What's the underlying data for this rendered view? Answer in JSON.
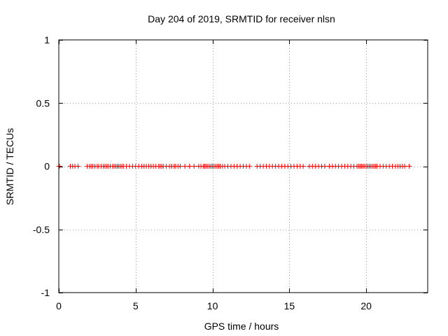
{
  "chart_data": {
    "type": "scatter",
    "title": "Day 204 of 2019, SRMTID for receiver nlsn",
    "xlabel": "GPS time / hours",
    "ylabel": "SRMTID / TECUs",
    "xlim": [
      0,
      24
    ],
    "ylim": [
      -1,
      1
    ],
    "xticks": [
      0,
      5,
      10,
      15,
      20
    ],
    "xtick_labels": [
      "0",
      "5",
      "10",
      "15",
      "20"
    ],
    "yticks": [
      -1,
      -0.5,
      0,
      0.5,
      1
    ],
    "ytick_labels": [
      "-1",
      "-0.5",
      "0",
      "0.5",
      "1"
    ],
    "grid": true,
    "marker": "+",
    "series": [
      {
        "name": "SRMTID",
        "color": "#ff0000",
        "x": [
          0.0,
          0.05,
          0.75,
          0.9,
          1.05,
          1.25,
          1.85,
          2.0,
          2.1,
          2.2,
          2.35,
          2.5,
          2.6,
          2.75,
          2.9,
          3.0,
          3.1,
          3.2,
          3.35,
          3.5,
          3.6,
          3.7,
          3.8,
          3.9,
          4.0,
          4.1,
          4.2,
          4.4,
          4.6,
          4.8,
          5.0,
          5.2,
          5.4,
          5.55,
          5.7,
          5.85,
          6.0,
          6.15,
          6.3,
          6.5,
          6.6,
          6.7,
          6.8,
          7.0,
          7.2,
          7.35,
          7.5,
          7.6,
          7.75,
          7.9,
          8.2,
          8.5,
          8.8,
          9.1,
          9.25,
          9.4,
          9.5,
          9.6,
          9.7,
          9.8,
          9.9,
          10.0,
          10.1,
          10.2,
          10.3,
          10.4,
          10.5,
          10.65,
          10.8,
          11.0,
          11.2,
          11.4,
          11.6,
          11.8,
          12.0,
          12.2,
          12.4,
          12.9,
          13.1,
          13.3,
          13.5,
          13.7,
          13.9,
          14.1,
          14.3,
          14.5,
          14.7,
          14.9,
          15.1,
          15.3,
          15.5,
          15.7,
          15.9,
          16.3,
          16.5,
          16.7,
          16.9,
          17.1,
          17.3,
          17.6,
          17.8,
          18.0,
          18.2,
          18.4,
          18.6,
          18.8,
          19.0,
          19.2,
          19.4,
          19.5,
          19.6,
          19.7,
          19.8,
          19.9,
          20.0,
          20.1,
          20.2,
          20.3,
          20.4,
          20.5,
          20.6,
          20.7,
          20.9,
          21.1,
          21.3,
          21.5,
          21.7,
          21.9,
          22.05,
          22.2,
          22.35,
          22.5,
          22.8
        ],
        "y": [
          0,
          0,
          0,
          0,
          0,
          0,
          0,
          0,
          0,
          0,
          0,
          0,
          0,
          0,
          0,
          0,
          0,
          0,
          0,
          0,
          0,
          0,
          0,
          0,
          0,
          0,
          0,
          0,
          0,
          0,
          0,
          0,
          0,
          0,
          0,
          0,
          0,
          0,
          0,
          0,
          0,
          0,
          0,
          0,
          0,
          0,
          0,
          0,
          0,
          0,
          0,
          0,
          0,
          0,
          0,
          0,
          0,
          0,
          0,
          0,
          0,
          0,
          0,
          0,
          0,
          0,
          0,
          0,
          0,
          0,
          0,
          0,
          0,
          0,
          0,
          0,
          0,
          0,
          0,
          0,
          0,
          0,
          0,
          0,
          0,
          0,
          0,
          0,
          0,
          0,
          0,
          0,
          0,
          0,
          0,
          0,
          0,
          0,
          0,
          0,
          0,
          0,
          0,
          0,
          0,
          0,
          0,
          0,
          0,
          0,
          0,
          0,
          0,
          0,
          0,
          0,
          0,
          0,
          0,
          0,
          0,
          0,
          0,
          0,
          0,
          0,
          0,
          0,
          0,
          0,
          0,
          0,
          0
        ]
      }
    ]
  }
}
